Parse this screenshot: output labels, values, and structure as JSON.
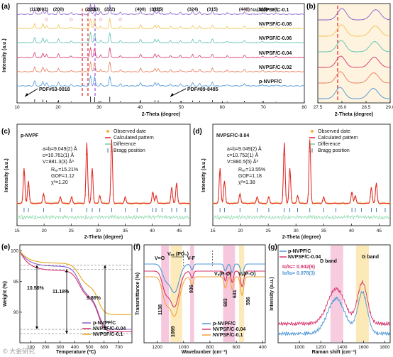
{
  "panels": {
    "a": {
      "label": "(a)",
      "xlabel": "2-Theta (degree)",
      "ylabel": "Intensity (a.u.)",
      "xticks": [
        "10",
        "20",
        "30",
        "40",
        "50",
        "60",
        "70",
        "80"
      ],
      "legend": "Na₃V₂(PO₄)₃",
      "series": [
        "NVPSF/C-0.1",
        "NVPSF/C-0.08",
        "NVPSF/C-0.06",
        "NVPSF/C-0.04",
        "NVPSF/C-0.02",
        "p-NVPF/C"
      ],
      "hkl": [
        "(111)",
        "(002)",
        "(200)",
        "(220)",
        "(113)",
        "(222)",
        "(400)",
        "(311)",
        "(115)",
        "(324)",
        "(315)",
        "(440)",
        "(335)"
      ],
      "pdf1": "PDF#53-0018",
      "pdf2": "PDF#89-8485"
    },
    "b": {
      "label": "(b)",
      "xlabel": "2-Theta (degree)",
      "xticks": [
        "27.5",
        "28.0",
        "28.5",
        "29.0"
      ]
    },
    "c": {
      "label": "(c)",
      "name": "p-NVPF",
      "params": [
        "a=b=9.049(2) Å",
        "c=10.761(1) Å",
        "V=881.3(3) Å³"
      ],
      "fit": [
        "Rᵥₚ=15.21%",
        "GOF=1.12",
        "χ²=1.20"
      ],
      "legend": [
        "Observed date",
        "Calculated pattern",
        "Difference",
        "Bragg position"
      ],
      "xlabel": "2-Theta (degree)",
      "ylabel": "Intensity (a.u.)",
      "xticks": [
        "15",
        "20",
        "25",
        "30",
        "35",
        "40",
        "45"
      ]
    },
    "d": {
      "label": "(d)",
      "name": "NVPSF/C-0.04",
      "params": [
        "a=b=9.049(2) Å",
        "c=10.752(1) Å",
        "V=880.5(5) Å³"
      ],
      "fit": [
        "Rᵥₚ=13.55%",
        "GOF=1.18",
        "χ²=1.38"
      ],
      "legend": [
        "Observed date",
        "Calculated pattern",
        "Difference",
        "Bragg position"
      ],
      "xlabel": "2-Theta (degree)",
      "ylabel": "Intensity (a.u.)",
      "xticks": [
        "15",
        "20",
        "25",
        "30",
        "35",
        "40",
        "45"
      ]
    },
    "e": {
      "label": "(e)",
      "xlabel": "Temperature (ºC)",
      "ylabel": "Weight (%)",
      "xticks": [
        "100",
        "200",
        "300",
        "400",
        "500",
        "600",
        "700"
      ],
      "yticks": [
        "90",
        "95",
        "100"
      ],
      "legend": [
        "p-NVPF/C",
        "NVPSF/C-0.04",
        "NVPSF/C-0.1"
      ],
      "losses": [
        "10.56%",
        "11.18%",
        "9.86%"
      ]
    },
    "f": {
      "label": "(f)",
      "xlabel": "Wavebunber (cm⁻¹)",
      "ylabel": "Transmittance (%)",
      "xticks": [
        "1200",
        "1000",
        "800",
        "600",
        "400"
      ],
      "bands": [
        "V=O",
        "Vₐₛ (PO₄)",
        "V-F",
        "Vₛ(P-O)",
        "Vₐ(P-O)"
      ],
      "peaks": [
        "1138",
        "1069",
        "936",
        "683",
        "631",
        "556"
      ],
      "legend": [
        "p-NVPF/C",
        "NVPSF/C-0.04",
        "NVPSF/C-0.1"
      ]
    },
    "g": {
      "label": "(g)",
      "xlabel": "Raman shift (cm⁻¹)",
      "ylabel": "Intensity (a.u.)",
      "xticks": [
        "1000",
        "1200",
        "1400",
        "1600",
        "1800"
      ],
      "legend": [
        "p-NVPF/C",
        "NVPSF/C-0.04"
      ],
      "ratios": [
        "Iᴅ/Iɢ= 0.942(6)",
        "Iᴅ/Iɢ= 0.978(3)"
      ],
      "bands": [
        "D band",
        "G band"
      ]
    }
  },
  "watermark": "© 大金研究",
  "colors": {
    "c01": "#8a5fc9",
    "c008": "#f2c14e",
    "c006": "#5cc0b0",
    "c004": "#d6336c",
    "c002": "#e87a5a",
    "pnvpf": "#4f97d6",
    "dash_red": "#e02020",
    "dash_purple": "#8a2be2",
    "obs": "#f5b041",
    "calc": "#e02020",
    "diff": "#6fcf97",
    "bragg": "#3a6ea5",
    "tga_p": "#8a5fc9",
    "tga_004": "#d6336c",
    "tga_01": "#e6a817",
    "ftir_p": "#4f97d6",
    "ftir_004": "#d6336c",
    "ftir_01": "#f2a33a",
    "raman_p": "#4f97d6",
    "raman_004": "#d6336c",
    "pink_band": "#f4b6d2",
    "yellow_band": "#fbe3a6"
  }
}
